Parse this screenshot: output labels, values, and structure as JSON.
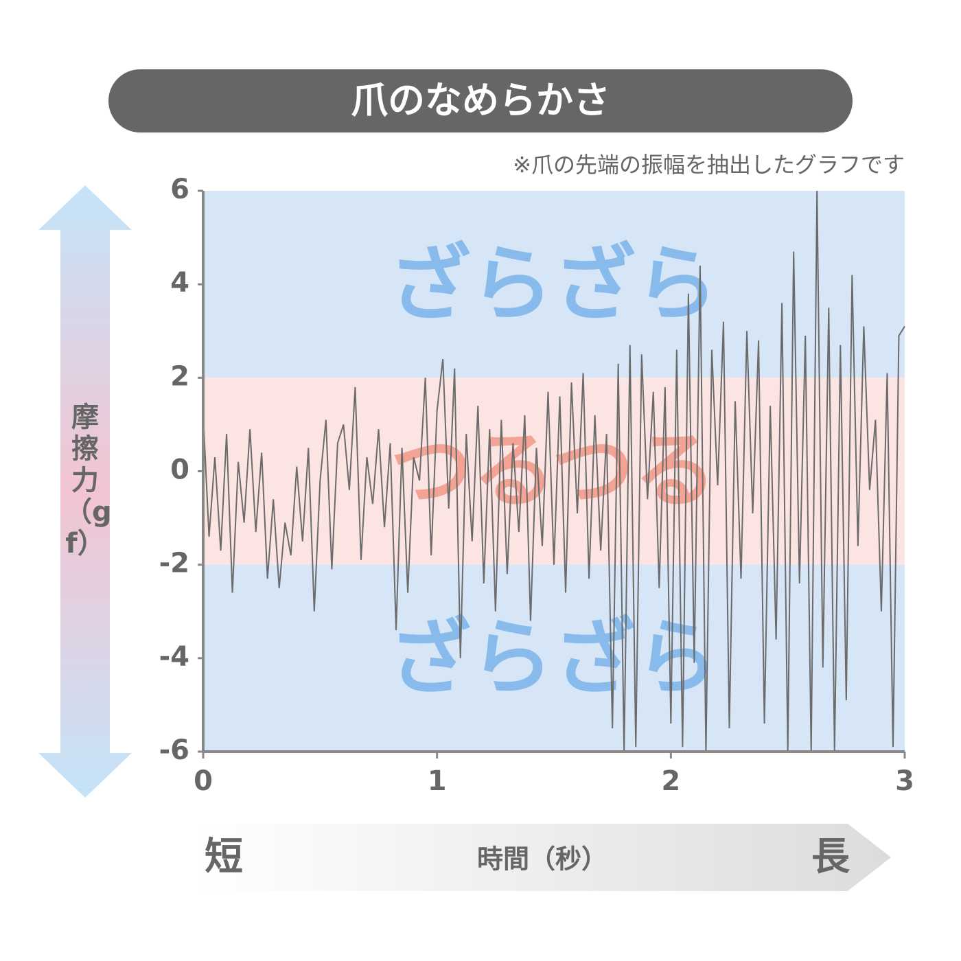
{
  "chart_data": {
    "type": "line",
    "title": "爪のなめらかさ",
    "note": "※爪の先端の振幅を抽出したグラフです",
    "ylabel": "摩擦力（gf）",
    "xlabel": "時間（秒）",
    "x_start_label": "短",
    "x_end_label": "長",
    "xlim": [
      0,
      3
    ],
    "xticks": [
      0,
      1,
      2,
      3
    ],
    "ylim": [
      -6,
      6
    ],
    "yticks": [
      -6,
      -4,
      -2,
      0,
      2,
      4,
      6
    ],
    "bands": [
      {
        "from": 2,
        "to": 6,
        "label": "ざらざら",
        "color": "#d6e6f7",
        "label_color": "#88bbec"
      },
      {
        "from": -2,
        "to": 2,
        "label": "つるつる",
        "color": "#fce4e3",
        "label_color": "#f2a393"
      },
      {
        "from": -6,
        "to": -2,
        "label": "ざらざら",
        "color": "#d6e6f7",
        "label_color": "#88bbec"
      }
    ],
    "x": [
      0,
      0.025,
      0.05,
      0.075,
      0.1,
      0.125,
      0.15,
      0.175,
      0.2,
      0.225,
      0.25,
      0.275,
      0.3,
      0.325,
      0.35,
      0.375,
      0.4,
      0.425,
      0.45,
      0.475,
      0.5,
      0.525,
      0.55,
      0.575,
      0.6,
      0.625,
      0.65,
      0.675,
      0.7,
      0.725,
      0.75,
      0.775,
      0.8,
      0.825,
      0.85,
      0.875,
      0.9,
      0.925,
      0.95,
      0.975,
      1,
      1.025,
      1.05,
      1.075,
      1.1,
      1.125,
      1.15,
      1.175,
      1.2,
      1.225,
      1.25,
      1.275,
      1.3,
      1.325,
      1.35,
      1.375,
      1.4,
      1.425,
      1.45,
      1.475,
      1.5,
      1.525,
      1.55,
      1.575,
      1.6,
      1.625,
      1.65,
      1.675,
      1.7,
      1.725,
      1.75,
      1.775,
      1.8,
      1.825,
      1.85,
      1.875,
      1.9,
      1.925,
      1.95,
      1.975,
      2,
      2.025,
      2.05,
      2.075,
      2.1,
      2.125,
      2.15,
      2.175,
      2.2,
      2.225,
      2.25,
      2.275,
      2.3,
      2.325,
      2.35,
      2.375,
      2.4,
      2.425,
      2.45,
      2.475,
      2.5,
      2.525,
      2.55,
      2.575,
      2.6,
      2.625,
      2.65,
      2.675,
      2.7,
      2.725,
      2.75,
      2.775,
      2.8,
      2.825,
      2.85,
      2.875,
      2.9,
      2.925,
      2.95,
      2.975,
      3
    ],
    "series": [
      {
        "name": "摩擦力",
        "color": "#6b6b6b",
        "values": [
          1.2,
          -1.4,
          0.3,
          -1.7,
          0.8,
          -2.6,
          0.2,
          -1.1,
          0.9,
          -1.3,
          0.4,
          -2.3,
          -0.6,
          -2.5,
          -1.1,
          -1.8,
          0.1,
          -1.5,
          0.5,
          -3.0,
          -0.2,
          1.1,
          -2.1,
          0.6,
          1.0,
          -0.4,
          1.8,
          -1.9,
          0.3,
          -0.7,
          0.9,
          -1.2,
          0.6,
          -3.4,
          0.5,
          -2.6,
          0.3,
          -0.2,
          2.0,
          -1.8,
          1.3,
          2.4,
          -0.8,
          2.2,
          -4.0,
          0.8,
          -1.5,
          1.4,
          -2.4,
          0.9,
          -3.0,
          1.1,
          -2.2,
          0.6,
          -1.3,
          1.2,
          -3.2,
          0.5,
          -1.6,
          1.7,
          -2.0,
          1.6,
          -2.6,
          1.9,
          -0.9,
          2.1,
          -2.3,
          1.2,
          -1.7,
          0.8,
          -5.5,
          2.3,
          -6.0,
          2.7,
          -5.9,
          2.5,
          -0.6,
          1.7,
          -2.5,
          1.8,
          -5.4,
          2.6,
          -5.9,
          3.8,
          -4.1,
          4.4,
          -6.0,
          2.6,
          -0.3,
          3.2,
          -5.5,
          1.5,
          -2.3,
          3.0,
          -0.9,
          2.8,
          -5.4,
          1.4,
          -3.6,
          3.6,
          -6.0,
          4.7,
          -2.4,
          2.9,
          -6.0,
          6.0,
          -4.2,
          3.5,
          -6.0,
          2.7,
          -4.9,
          4.2,
          -1.6,
          3.1,
          -0.4,
          1.1,
          -3.0,
          2.1,
          -5.9,
          2.9,
          3.1
        ]
      }
    ]
  }
}
